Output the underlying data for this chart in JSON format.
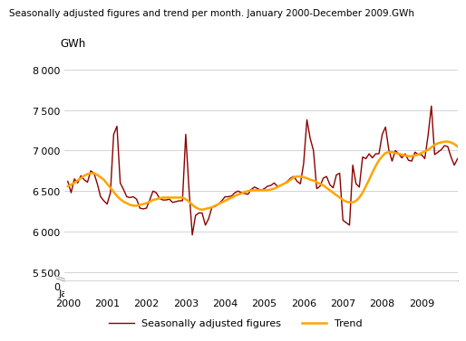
{
  "title": "Seasonally adjusted figures and trend per month. January 2000-December 2009.GWh",
  "ylabel": "GWh",
  "ylim": [
    5400,
    8200
  ],
  "y_bottom_shown": 0,
  "yticks": [
    0,
    5500,
    6000,
    6500,
    7000,
    7500,
    8000
  ],
  "bg_color": "#ffffff",
  "grid_color": "#cccccc",
  "seasonally_adjusted_color": "#8B0000",
  "trend_color": "#FFA500",
  "seasonally_adjusted_label": "Seasonally adjusted figures",
  "trend_label": "Trend",
  "seasonally_adjusted": [
    6620,
    6480,
    6650,
    6600,
    6690,
    6640,
    6610,
    6750,
    6720,
    6590,
    6430,
    6380,
    6340,
    6480,
    7200,
    7300,
    6600,
    6520,
    6430,
    6420,
    6430,
    6400,
    6290,
    6280,
    6290,
    6390,
    6500,
    6480,
    6410,
    6390,
    6390,
    6400,
    6360,
    6370,
    6380,
    6380,
    7200,
    6520,
    5960,
    6200,
    6230,
    6230,
    6080,
    6160,
    6300,
    6310,
    6340,
    6380,
    6430,
    6430,
    6440,
    6480,
    6500,
    6480,
    6470,
    6460,
    6520,
    6550,
    6530,
    6510,
    6530,
    6560,
    6570,
    6600,
    6560,
    6570,
    6590,
    6620,
    6660,
    6680,
    6620,
    6590,
    6840,
    7380,
    7150,
    7000,
    6530,
    6560,
    6660,
    6680,
    6580,
    6540,
    6700,
    6720,
    6140,
    6110,
    6080,
    6820,
    6590,
    6550,
    6920,
    6900,
    6960,
    6910,
    6960,
    6960,
    7200,
    7290,
    7010,
    6870,
    7000,
    6960,
    6910,
    6960,
    6880,
    6870,
    6980,
    6950,
    6950,
    6900,
    7190,
    7550,
    6950,
    6980,
    7010,
    7060,
    7050,
    6920,
    6820,
    6900
  ],
  "trend": [
    6560,
    6580,
    6600,
    6630,
    6660,
    6690,
    6710,
    6720,
    6720,
    6700,
    6670,
    6640,
    6590,
    6540,
    6490,
    6440,
    6400,
    6370,
    6350,
    6330,
    6320,
    6320,
    6330,
    6340,
    6350,
    6370,
    6390,
    6400,
    6410,
    6420,
    6420,
    6420,
    6420,
    6420,
    6420,
    6420,
    6400,
    6370,
    6330,
    6300,
    6280,
    6270,
    6280,
    6290,
    6300,
    6320,
    6340,
    6360,
    6380,
    6400,
    6420,
    6440,
    6460,
    6470,
    6490,
    6500,
    6510,
    6510,
    6510,
    6510,
    6510,
    6510,
    6520,
    6530,
    6550,
    6570,
    6590,
    6610,
    6640,
    6670,
    6680,
    6680,
    6670,
    6660,
    6640,
    6630,
    6610,
    6590,
    6570,
    6540,
    6510,
    6480,
    6450,
    6420,
    6390,
    6370,
    6360,
    6360,
    6380,
    6420,
    6480,
    6560,
    6640,
    6730,
    6810,
    6880,
    6930,
    6970,
    6980,
    6980,
    6970,
    6960,
    6950,
    6940,
    6930,
    6930,
    6940,
    6950,
    6970,
    6990,
    7010,
    7040,
    7070,
    7090,
    7100,
    7110,
    7110,
    7100,
    7080,
    7050
  ],
  "x_tick_positions": [
    0,
    12,
    24,
    36,
    48,
    60,
    72,
    84,
    96,
    108
  ],
  "x_tick_labels": [
    "Jan.\n2000",
    "Jan.\n2001",
    "Jan.\n2002",
    "Jan.\n2003",
    "Jan.\n2004",
    "Jan.\n2005",
    "Jan.\n2006",
    "Jan.\n2007",
    "Jan.\n2008",
    "Jan.\n2009"
  ]
}
